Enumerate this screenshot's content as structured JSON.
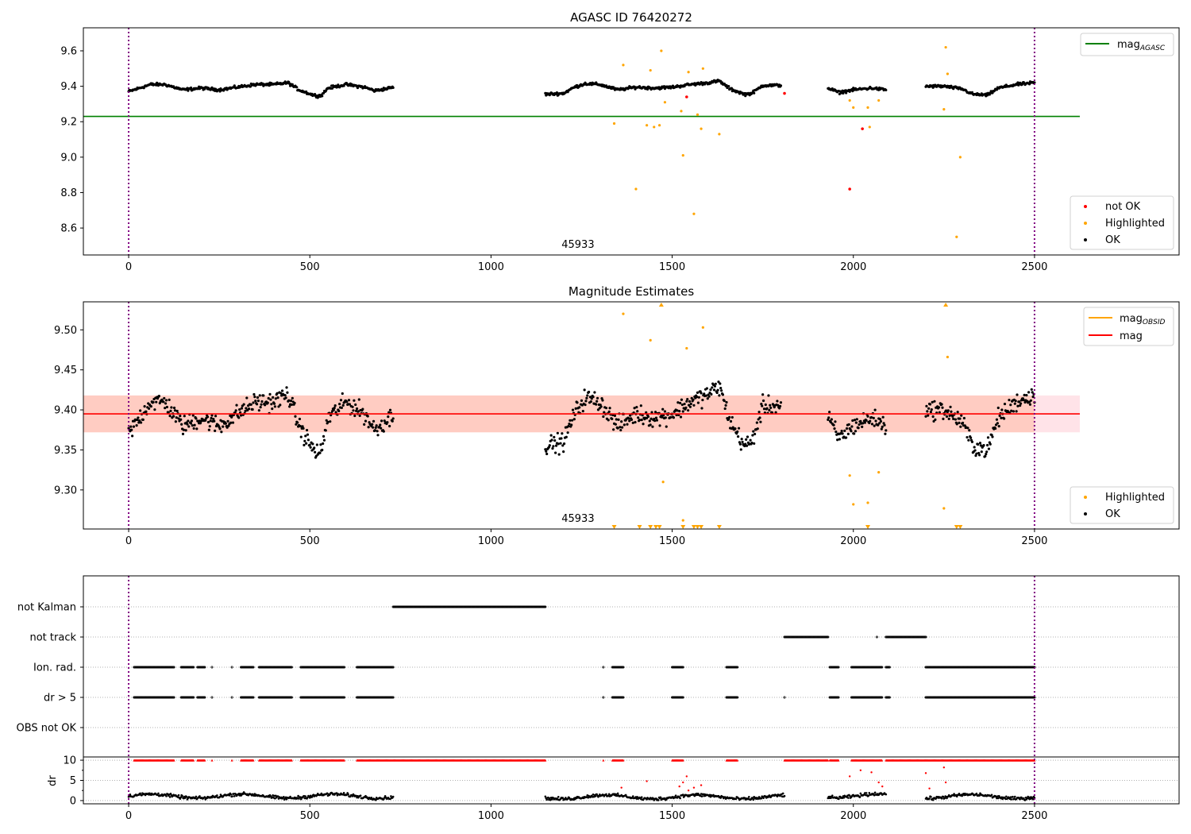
{
  "chart_data": [
    {
      "type": "scatter",
      "title": "AGASC ID 76420272",
      "annotation": "45933",
      "annotation_x": 1240,
      "xlim": [
        -125,
        2899
      ],
      "ylim": [
        8.448,
        9.73
      ],
      "xticks": [
        0,
        500,
        1000,
        1500,
        2000,
        2500
      ],
      "yticks": [
        8.6,
        8.8,
        9.0,
        9.2,
        9.4,
        9.6
      ],
      "ytick_labels": [
        "8.6",
        "8.8",
        "9.0",
        "9.2",
        "9.4",
        "9.6"
      ],
      "vlines": [
        0,
        2500
      ],
      "mag_agasc": 9.23,
      "mag_agasc_xrange": [
        -125,
        2625
      ],
      "legend_lines": [
        {
          "label": "mag",
          "sub": "AGASC",
          "color": "#008000"
        }
      ],
      "legend_points": [
        {
          "label": "not OK",
          "color": "#ff0000"
        },
        {
          "label": "Highlighted",
          "color": "#ffa500"
        },
        {
          "label": "OK",
          "color": "#000000"
        }
      ],
      "ok_trend_segments": [
        [
          [
            0,
            9.37
          ],
          [
            30,
            9.39
          ],
          [
            60,
            9.41
          ],
          [
            100,
            9.41
          ],
          [
            150,
            9.38
          ],
          [
            200,
            9.39
          ],
          [
            250,
            9.38
          ],
          [
            300,
            9.395
          ],
          [
            350,
            9.41
          ],
          [
            400,
            9.41
          ],
          [
            440,
            9.42
          ],
          [
            470,
            9.38
          ],
          [
            510,
            9.35
          ],
          [
            530,
            9.345
          ],
          [
            550,
            9.39
          ],
          [
            600,
            9.41
          ],
          [
            650,
            9.395
          ],
          [
            680,
            9.375
          ],
          [
            720,
            9.39
          ],
          [
            730,
            9.395
          ]
        ],
        [
          [
            1150,
            9.355
          ],
          [
            1200,
            9.36
          ],
          [
            1230,
            9.395
          ],
          [
            1260,
            9.415
          ],
          [
            1300,
            9.41
          ],
          [
            1350,
            9.38
          ],
          [
            1400,
            9.395
          ],
          [
            1450,
            9.39
          ],
          [
            1500,
            9.395
          ],
          [
            1550,
            9.41
          ],
          [
            1600,
            9.42
          ],
          [
            1630,
            9.43
          ],
          [
            1660,
            9.385
          ],
          [
            1700,
            9.355
          ],
          [
            1720,
            9.36
          ],
          [
            1750,
            9.405
          ],
          [
            1800,
            9.405
          ]
        ],
        [
          [
            1930,
            9.39
          ],
          [
            1960,
            9.365
          ],
          [
            2000,
            9.38
          ],
          [
            2050,
            9.39
          ],
          [
            2090,
            9.38
          ]
        ],
        [
          [
            2200,
            9.4
          ],
          [
            2250,
            9.4
          ],
          [
            2300,
            9.385
          ],
          [
            2330,
            9.355
          ],
          [
            2370,
            9.35
          ],
          [
            2400,
            9.39
          ],
          [
            2450,
            9.41
          ],
          [
            2500,
            9.42
          ]
        ]
      ],
      "highlighted": [
        [
          1340,
          9.19
        ],
        [
          1365,
          9.52
        ],
        [
          1400,
          8.82
        ],
        [
          1430,
          9.18
        ],
        [
          1440,
          9.49
        ],
        [
          1450,
          9.17
        ],
        [
          1465,
          9.18
        ],
        [
          1470,
          9.6
        ],
        [
          1480,
          9.31
        ],
        [
          1525,
          9.26
        ],
        [
          1530,
          9.01
        ],
        [
          1545,
          9.48
        ],
        [
          1560,
          8.68
        ],
        [
          1570,
          9.24
        ],
        [
          1580,
          9.16
        ],
        [
          1585,
          9.5
        ],
        [
          1630,
          9.13
        ],
        [
          1990,
          9.32
        ],
        [
          2000,
          9.28
        ],
        [
          2040,
          9.28
        ],
        [
          2045,
          9.17
        ],
        [
          2070,
          9.32
        ],
        [
          2250,
          9.27
        ],
        [
          2255,
          9.62
        ],
        [
          2260,
          9.47
        ],
        [
          2285,
          8.55
        ],
        [
          2295,
          9.0
        ]
      ],
      "not_ok": [
        [
          1540,
          9.34
        ],
        [
          1810,
          9.36
        ],
        [
          1990,
          8.82
        ],
        [
          2025,
          9.16
        ]
      ]
    },
    {
      "type": "scatter",
      "title": "Magnitude Estimates",
      "annotation": "45933",
      "annotation_x": 1240,
      "xlim": [
        -125,
        2899
      ],
      "ylim": [
        9.2512,
        9.535
      ],
      "xticks": [
        0,
        500,
        1000,
        1500,
        2000,
        2500
      ],
      "yticks": [
        9.3,
        9.35,
        9.4,
        9.45,
        9.5
      ],
      "ytick_labels": [
        "9.30",
        "9.35",
        "9.40",
        "9.45",
        "9.50"
      ],
      "vlines": [
        0,
        2500
      ],
      "mag": 9.395,
      "mag_band": [
        9.372,
        9.418
      ],
      "mag_xrange": [
        -125,
        2625
      ],
      "legend_lines": [
        {
          "label": "mag",
          "sub": "OBSID",
          "color": "#ffa500"
        },
        {
          "label": "mag",
          "sub": "",
          "color": "#ff0000"
        }
      ],
      "legend_points": [
        {
          "label": "Highlighted",
          "color": "#ffa500"
        },
        {
          "label": "OK",
          "color": "#000000"
        }
      ],
      "highlighted": [
        [
          1365,
          9.52
        ],
        [
          1440,
          9.487
        ],
        [
          1470,
          9.6
        ],
        [
          1475,
          9.31
        ],
        [
          1530,
          9.262
        ],
        [
          1540,
          9.477
        ],
        [
          1585,
          9.503
        ],
        [
          1990,
          9.318
        ],
        [
          2000,
          9.282
        ],
        [
          2040,
          9.284
        ],
        [
          2070,
          9.322
        ],
        [
          2250,
          9.277
        ],
        [
          2255,
          9.6
        ],
        [
          2260,
          9.466
        ],
        [
          1340,
          9.1
        ],
        [
          1410,
          9.1
        ],
        [
          1440,
          9.1
        ],
        [
          1455,
          9.1
        ],
        [
          1465,
          9.1
        ],
        [
          1530,
          9.1
        ],
        [
          1560,
          9.1
        ],
        [
          1570,
          9.1
        ],
        [
          1580,
          9.1
        ],
        [
          1630,
          9.1
        ],
        [
          2040,
          9.1
        ],
        [
          2285,
          9.1
        ],
        [
          2295,
          9.1
        ]
      ]
    },
    {
      "type": "scatter",
      "title": "",
      "xlim": [
        -125,
        2899
      ],
      "xticks": [
        0,
        500,
        1000,
        1500,
        2000,
        2500
      ],
      "flag_rows": [
        "not Kalman",
        "not track",
        "Ion. rad.",
        "dr > 5",
        "OBS not OK"
      ],
      "flags": {
        "not Kalman": [
          [
            730,
            1150
          ]
        ],
        "not track": [
          [
            1810,
            1930
          ],
          [
            2065,
            2065
          ],
          [
            2090,
            2200
          ]
        ],
        "Ion. rad.": [
          [
            15,
            125
          ],
          [
            145,
            180
          ],
          [
            190,
            210
          ],
          [
            230,
            230
          ],
          [
            285,
            285
          ],
          [
            310,
            345
          ],
          [
            360,
            450
          ],
          [
            475,
            595
          ],
          [
            630,
            730
          ],
          [
            1310,
            1310
          ],
          [
            1335,
            1365
          ],
          [
            1500,
            1530
          ],
          [
            1650,
            1680
          ],
          [
            1935,
            1960
          ],
          [
            1995,
            2080
          ],
          [
            2090,
            2100
          ],
          [
            2200,
            2500
          ]
        ],
        "dr > 5": [
          [
            15,
            125
          ],
          [
            145,
            180
          ],
          [
            190,
            210
          ],
          [
            230,
            230
          ],
          [
            285,
            285
          ],
          [
            310,
            345
          ],
          [
            360,
            450
          ],
          [
            475,
            595
          ],
          [
            630,
            730
          ],
          [
            1310,
            1310
          ],
          [
            1335,
            1365
          ],
          [
            1500,
            1530
          ],
          [
            1650,
            1680
          ],
          [
            1810,
            1810
          ],
          [
            1935,
            1960
          ],
          [
            1995,
            2080
          ],
          [
            2090,
            2100
          ],
          [
            2200,
            2500
          ]
        ],
        "OBS not OK": []
      },
      "dr_ylabel": "dr",
      "dr_ylim": [
        -0.8,
        10.8
      ],
      "dr_yticks": [
        0,
        5,
        10
      ],
      "dr_ytick_labels": [
        "0",
        "5",
        "10"
      ],
      "dr_clipped_10": [
        [
          15,
          125
        ],
        [
          145,
          180
        ],
        [
          190,
          210
        ],
        [
          230,
          230
        ],
        [
          285,
          285
        ],
        [
          310,
          345
        ],
        [
          360,
          450
        ],
        [
          475,
          595
        ],
        [
          630,
          1150
        ],
        [
          1310,
          1310
        ],
        [
          1335,
          1365
        ],
        [
          1500,
          1530
        ],
        [
          1650,
          1680
        ],
        [
          1810,
          1930
        ],
        [
          1935,
          1960
        ],
        [
          1995,
          2080
        ],
        [
          2090,
          2500
        ]
      ],
      "dr_red": [
        [
          1360,
          3.2
        ],
        [
          1430,
          4.8
        ],
        [
          1520,
          3.5
        ],
        [
          1530,
          4.5
        ],
        [
          1540,
          6.0
        ],
        [
          1545,
          2.5
        ],
        [
          1560,
          3.2
        ],
        [
          1580,
          3.8
        ],
        [
          1990,
          6.0
        ],
        [
          2020,
          7.5
        ],
        [
          2050,
          7.0
        ],
        [
          2070,
          4.5
        ],
        [
          2080,
          3.5
        ],
        [
          2200,
          6.8
        ],
        [
          2210,
          3.0
        ],
        [
          2250,
          8.2
        ],
        [
          2255,
          4.5
        ]
      ],
      "dr_ok_segments": [
        [
          0,
          730,
          1.1
        ],
        [
          1150,
          1810,
          0.9
        ],
        [
          1930,
          2090,
          1.2
        ],
        [
          2200,
          2500,
          1.0
        ]
      ]
    }
  ]
}
